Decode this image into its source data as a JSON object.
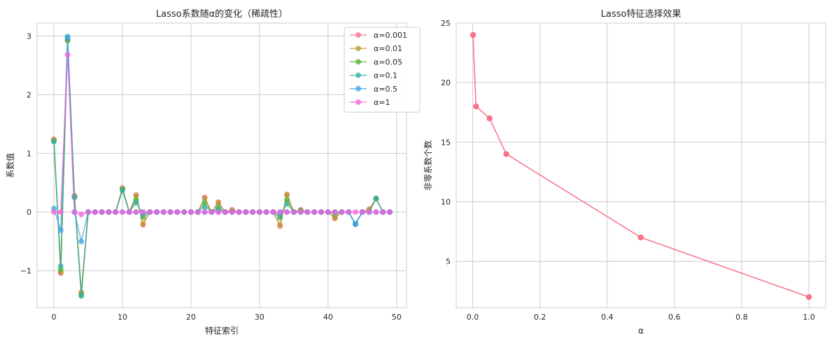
{
  "colors": {
    "background": "#ffffff",
    "grid": "#cccccc",
    "axes_edge": "#cccccc",
    "legend_edge": "#cccccc"
  },
  "chart_data": [
    {
      "type": "line",
      "title": "Lasso系数随α的变化（稀疏性）",
      "xlabel": "特征索引",
      "ylabel": "系数值",
      "xlim": [
        -2.45,
        51.45
      ],
      "ylim": [
        -1.63,
        3.22
      ],
      "xticks": [
        0,
        10,
        20,
        30,
        40,
        50
      ],
      "yticks": [
        -1,
        0,
        1,
        2,
        3
      ],
      "xticklabels": [
        "0",
        "10",
        "20",
        "30",
        "40",
        "50"
      ],
      "yticklabels": [
        "−1",
        "0",
        "1",
        "2",
        "3"
      ],
      "grid": true,
      "legend": "upper right",
      "marker": "circle",
      "x": [
        0,
        1,
        2,
        3,
        4,
        5,
        6,
        7,
        8,
        9,
        10,
        11,
        12,
        13,
        14,
        15,
        16,
        17,
        18,
        19,
        20,
        21,
        22,
        23,
        24,
        25,
        26,
        27,
        28,
        29,
        30,
        31,
        32,
        33,
        34,
        35,
        36,
        37,
        38,
        39,
        40,
        41,
        42,
        43,
        44,
        45,
        46,
        47,
        48,
        49
      ],
      "series": [
        {
          "name": "α=0.001",
          "color": "#f77189",
          "values": [
            1.24,
            -1.04,
            2.93,
            0.28,
            -1.37,
            0,
            0,
            0,
            0,
            0,
            0.41,
            0,
            0.29,
            -0.22,
            0,
            0,
            0,
            0,
            0,
            0,
            0,
            0,
            0.25,
            0,
            0.17,
            0,
            0.04,
            0,
            0,
            0,
            0,
            0,
            0,
            -0.24,
            0.3,
            0,
            0.04,
            0,
            0,
            0,
            0,
            -0.11,
            0,
            0,
            -0.2,
            0,
            0.05,
            0.23,
            0,
            0
          ]
        },
        {
          "name": "α=0.01",
          "color": "#bb9832",
          "values": [
            1.23,
            -1.03,
            2.92,
            0.27,
            -1.37,
            0,
            0,
            0,
            0,
            0,
            0.4,
            0,
            0.28,
            -0.2,
            0,
            0,
            0,
            0,
            0,
            0,
            0,
            0,
            0.24,
            0,
            0.16,
            0,
            0.03,
            0,
            0,
            0,
            0,
            0,
            0,
            -0.22,
            0.29,
            0,
            0.03,
            0,
            0,
            0,
            0,
            -0.1,
            0,
            0,
            -0.2,
            0,
            0.04,
            0.23,
            0,
            0
          ]
        },
        {
          "name": "α=0.05",
          "color": "#50b131",
          "values": [
            1.21,
            -0.98,
            2.93,
            0.26,
            -1.41,
            0,
            0,
            0,
            0,
            0,
            0.39,
            0,
            0.21,
            -0.09,
            0,
            0,
            0,
            0,
            0,
            0,
            0,
            0,
            0.16,
            0,
            0.08,
            0,
            0,
            0,
            0,
            0,
            0,
            0,
            0,
            -0.1,
            0.21,
            0,
            0.02,
            0,
            0,
            0,
            0,
            -0.03,
            0,
            0,
            -0.2,
            0,
            0,
            0.23,
            0,
            0
          ]
        },
        {
          "name": "α=0.1",
          "color": "#36ada4",
          "values": [
            1.2,
            -0.92,
            2.99,
            0.25,
            -1.43,
            0,
            0,
            0,
            0,
            0,
            0.37,
            0,
            0.16,
            -0.04,
            0,
            0,
            0,
            0,
            0,
            0,
            0,
            0,
            0.09,
            0,
            0.05,
            0,
            0,
            0,
            0,
            0,
            0,
            0,
            0,
            -0.06,
            0.14,
            0,
            0,
            0,
            0,
            0,
            0,
            0,
            0,
            0,
            -0.21,
            0,
            0,
            0.23,
            0,
            0
          ]
        },
        {
          "name": "α=0.5",
          "color": "#3ba3ec",
          "values": [
            0.06,
            -0.31,
            2.97,
            0,
            -0.5,
            0,
            0,
            0,
            0,
            0,
            0,
            0,
            0,
            0,
            0,
            0,
            0,
            0,
            0,
            0,
            0,
            0,
            0,
            0,
            0,
            0,
            0,
            0,
            0,
            0,
            0,
            0,
            0,
            0,
            0,
            0,
            0,
            0,
            0,
            0,
            0,
            0,
            0,
            0,
            -0.2,
            0,
            0,
            0,
            0,
            0
          ]
        },
        {
          "name": "α=1",
          "color": "#f561dd",
          "values": [
            0,
            0,
            2.68,
            0,
            -0.04,
            0,
            0,
            0,
            0,
            0,
            0,
            0,
            0,
            0,
            0,
            0,
            0,
            0,
            0,
            0,
            0,
            0,
            0,
            0,
            0,
            0,
            0,
            0,
            0,
            0,
            0,
            0,
            0,
            0,
            0,
            0,
            0,
            0,
            0,
            0,
            0,
            0,
            0,
            0,
            0,
            0,
            0,
            0,
            0,
            0
          ]
        }
      ]
    },
    {
      "type": "line",
      "title": "Lasso特征选择效果",
      "xlabel": "α",
      "ylabel": "非零系数个数",
      "xlim": [
        -0.049,
        1.05
      ],
      "ylim": [
        1.1,
        25.0
      ],
      "xticks": [
        0.0,
        0.2,
        0.4,
        0.6,
        0.8,
        1.0
      ],
      "yticks": [
        5,
        10,
        15,
        20,
        25
      ],
      "xticklabels": [
        "0.0",
        "0.2",
        "0.4",
        "0.6",
        "0.8",
        "1.0"
      ],
      "yticklabels": [
        "5",
        "10",
        "15",
        "20",
        "25"
      ],
      "grid": true,
      "marker": "circle",
      "series": [
        {
          "color": "#f77189",
          "x": [
            0.001,
            0.01,
            0.05,
            0.1,
            0.5,
            1.0
          ],
          "values": [
            24,
            18,
            17,
            14,
            7,
            2
          ]
        }
      ]
    }
  ]
}
